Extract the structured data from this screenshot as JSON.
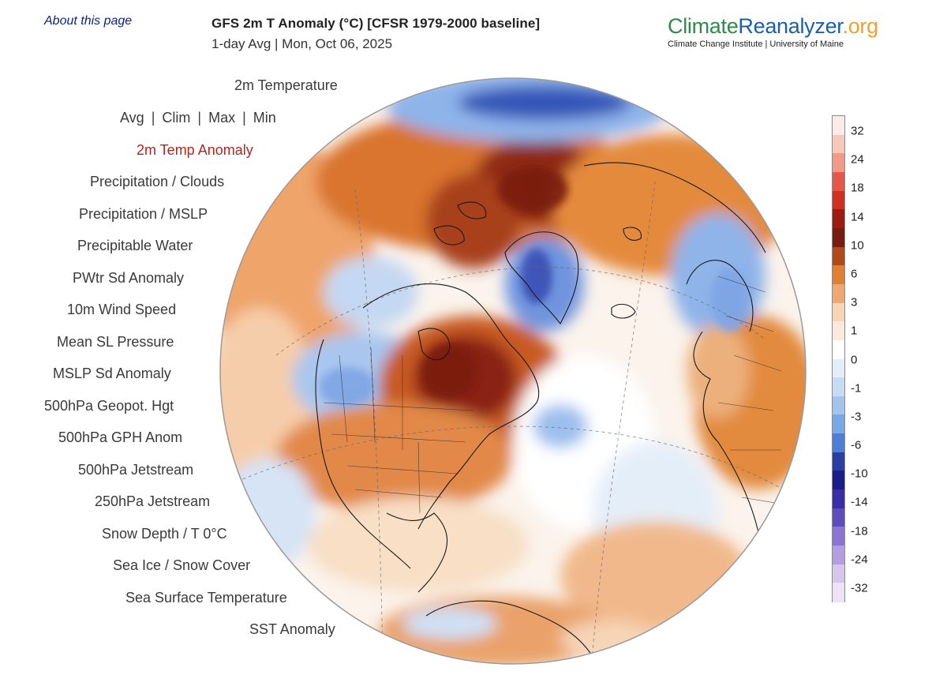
{
  "about_link": "About this page",
  "header": {
    "title": "GFS 2m T Anomaly (°C) [CFSR 1979-2000 baseline]",
    "subtitle": "1-day Avg | Mon, Oct 06, 2025"
  },
  "brand": {
    "part1": "Climate",
    "part2": "Reanalyzer",
    "part3": ".org",
    "tagline": "Climate Change Institute | University of Maine",
    "colors": {
      "climate": "#2f8a4b",
      "reanalyzer": "#1c5ea8",
      "org": "#f0a030"
    }
  },
  "menu": {
    "temperature": "2m Temperature",
    "stat_options": [
      "Avg",
      "Clim",
      "Max",
      "Min"
    ],
    "stat_separator": "|",
    "items": [
      "2m Temp Anomaly",
      "Precipitation / Clouds",
      "Precipitation / MSLP",
      "Precipitable Water",
      "PWtr Sd Anomaly",
      "10m Wind Speed",
      "Mean SL Pressure",
      "MSLP Sd Anomaly",
      "500hPa Geopot. Hgt",
      "500hPa GPH Anom",
      "500hPa Jetstream",
      "250hPa Jetstream",
      "Snow Depth / T 0°C",
      "Sea Ice / Snow Cover",
      "Sea Surface Temperature",
      "SST Anomaly"
    ],
    "active_item": "2m Temp Anomaly",
    "active_color": "#b1261f"
  },
  "legend": {
    "labels": [
      "32",
      "24",
      "18",
      "14",
      "10",
      "6",
      "3",
      "1",
      "0",
      "-1",
      "-3",
      "-6",
      "-10",
      "-14",
      "-18",
      "-24",
      "-32"
    ],
    "colors": [
      "#fbeae6",
      "#f6c9b8",
      "#f29a86",
      "#e6574a",
      "#d02f22",
      "#9e1b12",
      "#7a1b10",
      "#b14a19",
      "#e08030",
      "#f0a870",
      "#f7d4b4",
      "#fbeada",
      "#ffffff",
      "#e4eef9",
      "#c7dbf3",
      "#a2c4ee",
      "#78a8e6",
      "#4e7fd6",
      "#2a3ea6",
      "#1a1d8c",
      "#3a2ea8",
      "#5d4bbf",
      "#8b74d3",
      "#b59de2",
      "#d7c5ee",
      "#ede2f6"
    ]
  },
  "map": {
    "projection": "orthographic",
    "region": "Northern Hemisphere, Atlantic-centered"
  }
}
